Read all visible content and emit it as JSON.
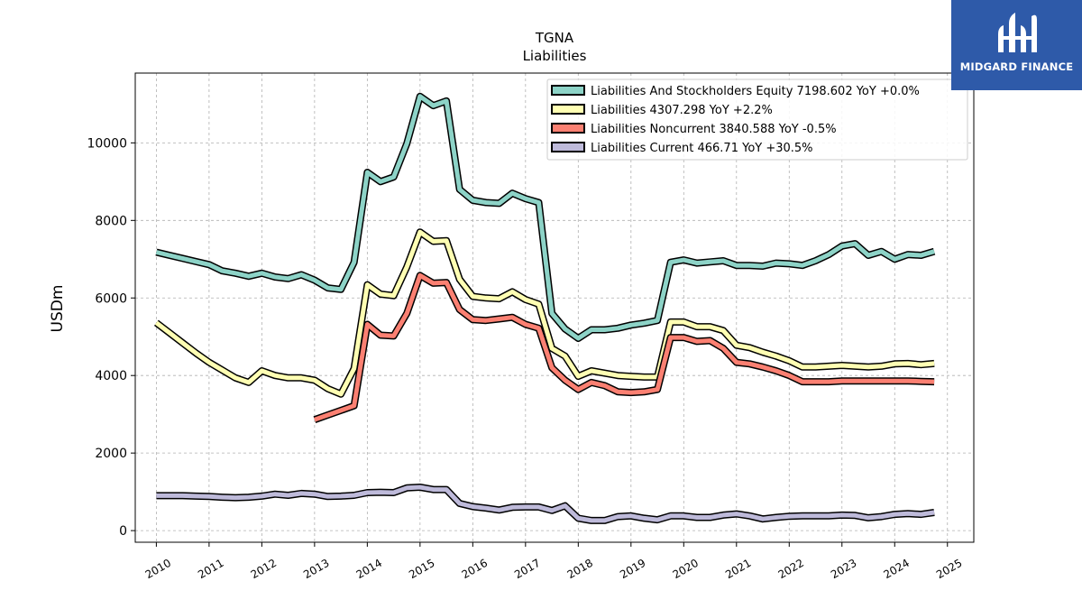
{
  "brand": {
    "name": "MIDGARD FINANCE",
    "bg_color": "#2e5aa9",
    "icon": "midgard-logo-icon"
  },
  "chart_data": {
    "type": "line",
    "title": "TGNA",
    "subtitle": "Liabilities",
    "xlabel": "",
    "ylabel": "USDm",
    "xlim": [
      2009.6,
      2025.5
    ],
    "ylim": [
      -300,
      11800
    ],
    "x_ticks": [
      "2010",
      "2011",
      "2012",
      "2013",
      "2014",
      "2015",
      "2016",
      "2017",
      "2018",
      "2019",
      "2020",
      "2021",
      "2022",
      "2023",
      "2024",
      "2025"
    ],
    "y_ticks": [
      "0",
      "2000",
      "4000",
      "6000",
      "8000",
      "10000"
    ],
    "grid": true,
    "legend_position": "top-right",
    "series": [
      {
        "name": "Liabilities And Stockholders Equity",
        "legend": "Liabilities And Stockholders Equity  7198.602 YoY +0.0%",
        "color": "#8dd3c7",
        "points": [
          [
            2010.0,
            7180
          ],
          [
            2010.25,
            7100
          ],
          [
            2010.5,
            7020
          ],
          [
            2010.75,
            6940
          ],
          [
            2011.0,
            6860
          ],
          [
            2011.25,
            6700
          ],
          [
            2011.5,
            6640
          ],
          [
            2011.75,
            6560
          ],
          [
            2012.0,
            6640
          ],
          [
            2012.25,
            6540
          ],
          [
            2012.5,
            6500
          ],
          [
            2012.75,
            6600
          ],
          [
            2013.0,
            6460
          ],
          [
            2013.25,
            6260
          ],
          [
            2013.5,
            6220
          ],
          [
            2013.75,
            6920
          ],
          [
            2014.0,
            9240
          ],
          [
            2014.25,
            9000
          ],
          [
            2014.5,
            9120
          ],
          [
            2014.75,
            9980
          ],
          [
            2015.0,
            11200
          ],
          [
            2015.25,
            10960
          ],
          [
            2015.5,
            11080
          ],
          [
            2015.75,
            8800
          ],
          [
            2016.0,
            8520
          ],
          [
            2016.25,
            8460
          ],
          [
            2016.5,
            8440
          ],
          [
            2016.75,
            8700
          ],
          [
            2017.0,
            8560
          ],
          [
            2017.25,
            8460
          ],
          [
            2017.5,
            5600
          ],
          [
            2017.75,
            5200
          ],
          [
            2018.0,
            4960
          ],
          [
            2018.25,
            5180
          ],
          [
            2018.5,
            5180
          ],
          [
            2018.75,
            5220
          ],
          [
            2019.0,
            5300
          ],
          [
            2019.25,
            5350
          ],
          [
            2019.5,
            5420
          ],
          [
            2019.75,
            6920
          ],
          [
            2020.0,
            6980
          ],
          [
            2020.25,
            6900
          ],
          [
            2020.5,
            6930
          ],
          [
            2020.75,
            6960
          ],
          [
            2021.0,
            6840
          ],
          [
            2021.25,
            6840
          ],
          [
            2021.5,
            6820
          ],
          [
            2021.75,
            6900
          ],
          [
            2022.0,
            6880
          ],
          [
            2022.25,
            6840
          ],
          [
            2022.5,
            6960
          ],
          [
            2022.75,
            7120
          ],
          [
            2023.0,
            7340
          ],
          [
            2023.25,
            7400
          ],
          [
            2023.5,
            7100
          ],
          [
            2023.75,
            7200
          ],
          [
            2024.0,
            7000
          ],
          [
            2024.25,
            7120
          ],
          [
            2024.5,
            7100
          ],
          [
            2024.75,
            7200
          ]
        ]
      },
      {
        "name": "Liabilities",
        "legend": "Liabilities  4307.298 YoY +2.2%",
        "color": "#ffffb3",
        "points": [
          [
            2010.0,
            5360
          ],
          [
            2010.25,
            5100
          ],
          [
            2010.5,
            4840
          ],
          [
            2010.75,
            4580
          ],
          [
            2011.0,
            4340
          ],
          [
            2011.25,
            4140
          ],
          [
            2011.5,
            3940
          ],
          [
            2011.75,
            3820
          ],
          [
            2012.0,
            4120
          ],
          [
            2012.25,
            4000
          ],
          [
            2012.5,
            3940
          ],
          [
            2012.75,
            3940
          ],
          [
            2013.0,
            3880
          ],
          [
            2013.25,
            3660
          ],
          [
            2013.5,
            3520
          ],
          [
            2013.75,
            4180
          ],
          [
            2014.0,
            6340
          ],
          [
            2014.25,
            6100
          ],
          [
            2014.5,
            6060
          ],
          [
            2014.75,
            6800
          ],
          [
            2015.0,
            7700
          ],
          [
            2015.25,
            7460
          ],
          [
            2015.5,
            7480
          ],
          [
            2015.75,
            6480
          ],
          [
            2016.0,
            6040
          ],
          [
            2016.25,
            6000
          ],
          [
            2016.5,
            5980
          ],
          [
            2016.75,
            6160
          ],
          [
            2017.0,
            5960
          ],
          [
            2017.25,
            5840
          ],
          [
            2017.5,
            4700
          ],
          [
            2017.75,
            4500
          ],
          [
            2018.0,
            3980
          ],
          [
            2018.25,
            4120
          ],
          [
            2018.5,
            4060
          ],
          [
            2018.75,
            4000
          ],
          [
            2019.0,
            3980
          ],
          [
            2019.25,
            3960
          ],
          [
            2019.5,
            3960
          ],
          [
            2019.75,
            5380
          ],
          [
            2020.0,
            5380
          ],
          [
            2020.25,
            5260
          ],
          [
            2020.5,
            5260
          ],
          [
            2020.75,
            5160
          ],
          [
            2021.0,
            4780
          ],
          [
            2021.25,
            4720
          ],
          [
            2021.5,
            4600
          ],
          [
            2021.75,
            4500
          ],
          [
            2022.0,
            4380
          ],
          [
            2022.25,
            4220
          ],
          [
            2022.5,
            4220
          ],
          [
            2022.75,
            4240
          ],
          [
            2023.0,
            4260
          ],
          [
            2023.25,
            4240
          ],
          [
            2023.5,
            4220
          ],
          [
            2023.75,
            4240
          ],
          [
            2024.0,
            4300
          ],
          [
            2024.25,
            4310
          ],
          [
            2024.5,
            4280
          ],
          [
            2024.75,
            4310
          ]
        ]
      },
      {
        "name": "Liabilities Noncurrent",
        "legend": "Liabilities Noncurrent  3840.588 YoY -0.5%",
        "color": "#fb8072",
        "points": [
          [
            2013.0,
            2860
          ],
          [
            2013.25,
            2980
          ],
          [
            2013.5,
            3100
          ],
          [
            2013.75,
            3220
          ],
          [
            2014.0,
            5320
          ],
          [
            2014.25,
            5040
          ],
          [
            2014.5,
            5020
          ],
          [
            2014.75,
            5600
          ],
          [
            2015.0,
            6580
          ],
          [
            2015.25,
            6380
          ],
          [
            2015.5,
            6400
          ],
          [
            2015.75,
            5700
          ],
          [
            2016.0,
            5440
          ],
          [
            2016.25,
            5420
          ],
          [
            2016.5,
            5460
          ],
          [
            2016.75,
            5500
          ],
          [
            2017.0,
            5320
          ],
          [
            2017.25,
            5220
          ],
          [
            2017.5,
            4200
          ],
          [
            2017.75,
            3880
          ],
          [
            2018.0,
            3640
          ],
          [
            2018.25,
            3820
          ],
          [
            2018.5,
            3740
          ],
          [
            2018.75,
            3580
          ],
          [
            2019.0,
            3560
          ],
          [
            2019.25,
            3580
          ],
          [
            2019.5,
            3640
          ],
          [
            2019.75,
            4980
          ],
          [
            2020.0,
            4980
          ],
          [
            2020.25,
            4880
          ],
          [
            2020.5,
            4900
          ],
          [
            2020.75,
            4700
          ],
          [
            2021.0,
            4340
          ],
          [
            2021.25,
            4300
          ],
          [
            2021.5,
            4220
          ],
          [
            2021.75,
            4120
          ],
          [
            2022.0,
            4000
          ],
          [
            2022.25,
            3840
          ],
          [
            2022.5,
            3840
          ],
          [
            2022.75,
            3840
          ],
          [
            2023.0,
            3860
          ],
          [
            2023.25,
            3860
          ],
          [
            2023.5,
            3860
          ],
          [
            2023.75,
            3860
          ],
          [
            2024.0,
            3860
          ],
          [
            2024.25,
            3860
          ],
          [
            2024.5,
            3850
          ],
          [
            2024.75,
            3840
          ]
        ]
      },
      {
        "name": "Liabilities Current",
        "legend": "Liabilities Current  466.71 YoY +30.5%",
        "color": "#bebada",
        "points": [
          [
            2010.0,
            900
          ],
          [
            2010.25,
            900
          ],
          [
            2010.5,
            900
          ],
          [
            2010.75,
            890
          ],
          [
            2011.0,
            880
          ],
          [
            2011.25,
            860
          ],
          [
            2011.5,
            850
          ],
          [
            2011.75,
            860
          ],
          [
            2012.0,
            890
          ],
          [
            2012.25,
            940
          ],
          [
            2012.5,
            910
          ],
          [
            2012.75,
            960
          ],
          [
            2013.0,
            940
          ],
          [
            2013.25,
            880
          ],
          [
            2013.5,
            890
          ],
          [
            2013.75,
            910
          ],
          [
            2014.0,
            980
          ],
          [
            2014.25,
            990
          ],
          [
            2014.5,
            980
          ],
          [
            2014.75,
            1100
          ],
          [
            2015.0,
            1120
          ],
          [
            2015.25,
            1060
          ],
          [
            2015.5,
            1060
          ],
          [
            2015.75,
            700
          ],
          [
            2016.0,
            620
          ],
          [
            2016.25,
            580
          ],
          [
            2016.5,
            530
          ],
          [
            2016.75,
            600
          ],
          [
            2017.0,
            610
          ],
          [
            2017.25,
            610
          ],
          [
            2017.5,
            520
          ],
          [
            2017.75,
            640
          ],
          [
            2018.0,
            320
          ],
          [
            2018.25,
            260
          ],
          [
            2018.5,
            260
          ],
          [
            2018.75,
            360
          ],
          [
            2019.0,
            380
          ],
          [
            2019.25,
            320
          ],
          [
            2019.5,
            280
          ],
          [
            2019.75,
            380
          ],
          [
            2020.0,
            380
          ],
          [
            2020.25,
            340
          ],
          [
            2020.5,
            340
          ],
          [
            2020.75,
            400
          ],
          [
            2021.0,
            430
          ],
          [
            2021.25,
            380
          ],
          [
            2021.5,
            300
          ],
          [
            2021.75,
            340
          ],
          [
            2022.0,
            370
          ],
          [
            2022.25,
            380
          ],
          [
            2022.5,
            380
          ],
          [
            2022.75,
            380
          ],
          [
            2023.0,
            400
          ],
          [
            2023.25,
            390
          ],
          [
            2023.5,
            330
          ],
          [
            2023.75,
            360
          ],
          [
            2024.0,
            420
          ],
          [
            2024.25,
            440
          ],
          [
            2024.5,
            420
          ],
          [
            2024.75,
            467
          ]
        ]
      }
    ]
  }
}
